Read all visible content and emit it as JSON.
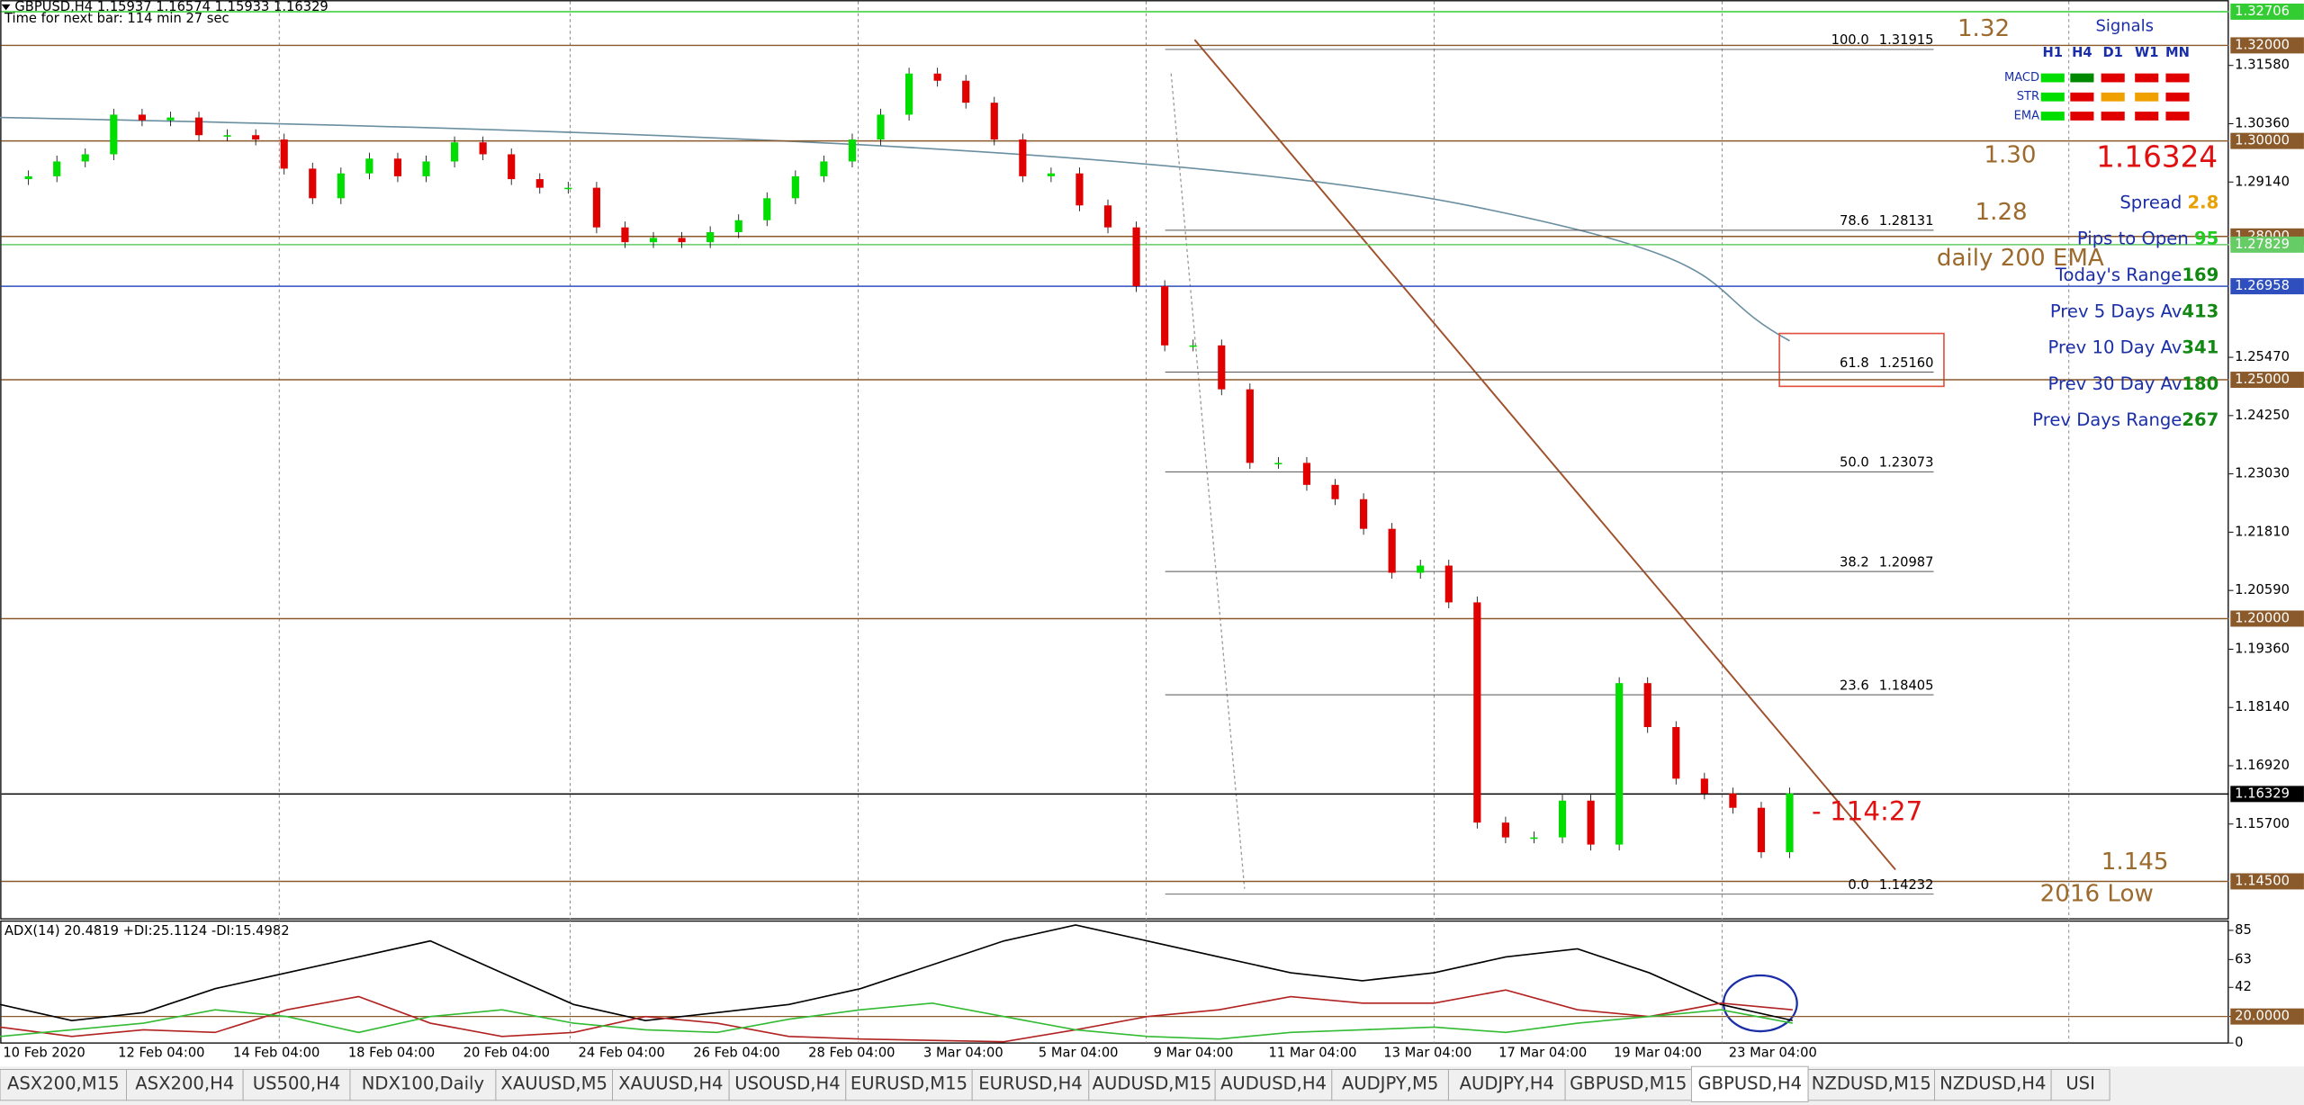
{
  "header": {
    "symbol_line": "GBPUSD,H4  1.15937 1.16574 1.15933 1.16329",
    "timer_line": "Time for next bar: 114 min 27 sec"
  },
  "price_chart": {
    "ylim": [
      1.1373,
      1.3295
    ],
    "yticks": [
      {
        "value": 1.3158,
        "label": "1.31580"
      },
      {
        "value": 1.3036,
        "label": "1.30360"
      },
      {
        "value": 1.2914,
        "label": "1.29140"
      },
      {
        "value": 1.2547,
        "label": "1.25470"
      },
      {
        "value": 1.2425,
        "label": "1.24250"
      },
      {
        "value": 1.2303,
        "label": "1.23030"
      },
      {
        "value": 1.2181,
        "label": "1.21810"
      },
      {
        "value": 1.2059,
        "label": "1.20590"
      },
      {
        "value": 1.1936,
        "label": "1.19360"
      },
      {
        "value": 1.1814,
        "label": "1.18140"
      },
      {
        "value": 1.1692,
        "label": "1.16920"
      },
      {
        "value": 1.157,
        "label": "1.15700"
      }
    ],
    "levels": [
      {
        "value": 1.32706,
        "label": "1.32706",
        "color": "#33cc33"
      },
      {
        "value": 1.32,
        "label": "1.32000",
        "color": "#8b5a2b"
      },
      {
        "value": 1.3,
        "label": "1.30000",
        "color": "#8b5a2b"
      },
      {
        "value": 1.28,
        "label": "1.28000",
        "color": "#8b5a2b"
      },
      {
        "value": 1.27829,
        "label": "1.27829",
        "color": "#66cc66"
      },
      {
        "value": 1.26958,
        "label": "1.26958",
        "color": "#2f4fbf"
      },
      {
        "value": 1.25,
        "label": "1.25000",
        "color": "#8b5a2b"
      },
      {
        "value": 1.2,
        "label": "1.20000",
        "color": "#8b5a2b"
      },
      {
        "value": 1.16329,
        "label": "1.16329",
        "color": "#000000"
      },
      {
        "value": 1.145,
        "label": "1.14500",
        "color": "#8b5a2b"
      }
    ],
    "fibonacci": [
      {
        "ratio": "100.0",
        "value": 1.31915,
        "label": "1.31915"
      },
      {
        "ratio": "78.6",
        "value": 1.28131,
        "label": "1.28131"
      },
      {
        "ratio": "61.8",
        "value": 1.2516,
        "label": "1.25160"
      },
      {
        "ratio": "50.0",
        "value": 1.23073,
        "label": "1.23073"
      },
      {
        "ratio": "38.2",
        "value": 1.20987,
        "label": "1.20987"
      },
      {
        "ratio": "23.6",
        "value": 1.18405,
        "label": "1.18405"
      },
      {
        "ratio": "0.0",
        "value": 1.14232,
        "label": "1.14232"
      }
    ],
    "closes": [
      1.292,
      1.2926,
      1.2957,
      1.2972,
      1.3055,
      1.3043,
      1.3049,
      1.3012,
      1.3012,
      1.3003,
      1.2942,
      1.288,
      1.2932,
      1.2963,
      1.2926,
      1.2957,
      1.2997,
      1.2972,
      1.292,
      1.2902,
      1.2902,
      1.2819,
      1.2788,
      1.2797,
      1.2788,
      1.2809,
      1.2834,
      1.288,
      1.2926,
      1.2957,
      1.3003,
      1.3055,
      1.3141,
      1.3126,
      1.308,
      1.3003,
      1.2926,
      1.2932,
      1.2865,
      1.2819,
      1.2696,
      1.2572,
      1.2572,
      1.248,
      1.2326,
      1.2326,
      1.228,
      1.225,
      1.2188,
      1.2096,
      1.2111,
      1.2034,
      1.1573,
      1.1542,
      1.1542,
      1.1619,
      1.1527,
      1.1865,
      1.1773,
      1.1665,
      1.1634,
      1.1604,
      1.1511,
      1.1634
    ],
    "up_color": "#00dd00",
    "down_color": "#e00000",
    "annotations": [
      "1.32",
      "1.30",
      "1.28",
      "daily 200 EMA",
      "1.145",
      "2016 Low"
    ],
    "countdown": "- 114:27"
  },
  "signals": {
    "title": "Signals",
    "columns": [
      "H1",
      "H4",
      "D1",
      "W1",
      "MN"
    ],
    "rows": [
      {
        "name": "MACD",
        "colors": [
          "#00dd00",
          "#008800",
          "#e00000",
          "#e00000",
          "#e00000"
        ]
      },
      {
        "name": "STR",
        "colors": [
          "#00dd00",
          "#e00000",
          "#f0a000",
          "#f0a000",
          "#e00000"
        ]
      },
      {
        "name": "EMA",
        "colors": [
          "#00dd00",
          "#e00000",
          "#e00000",
          "#e00000",
          "#e00000"
        ]
      }
    ],
    "bid": "1.16324",
    "stats": [
      {
        "label": "Spread ",
        "value": "2.8",
        "color": "#e8a000"
      },
      {
        "label": "Pips to Open  ",
        "value": "95",
        "color": "#22cc22"
      },
      {
        "label": "Today's Range",
        "value": "169",
        "color": "#118811"
      },
      {
        "label": "Prev 5 Days Av",
        "value": "413",
        "color": "#118811"
      },
      {
        "label": "Prev 10 Day Av",
        "value": "341",
        "color": "#118811"
      },
      {
        "label": "Prev 30 Day Av",
        "value": "180",
        "color": "#118811"
      },
      {
        "label": "Prev Days Range",
        "value": "267",
        "color": "#118811"
      }
    ]
  },
  "adx": {
    "title": "ADX(14) 20.4819 +DI:25.1124 -DI:15.4982",
    "ylim": [
      0,
      92
    ],
    "yticks": [
      85,
      63,
      42,
      {
        "value": 20,
        "label": "20.0000"
      },
      0
    ],
    "series": [
      {
        "color": "#000000",
        "values": [
          29,
          17,
          23,
          41,
          53,
          65,
          77,
          53,
          29,
          17,
          23,
          29,
          41,
          59,
          77,
          89,
          77,
          65,
          53,
          47,
          53,
          65,
          71,
          53,
          29,
          17
        ]
      },
      {
        "color": "#b22222",
        "values": [
          12,
          5,
          10,
          8,
          25,
          35,
          15,
          5,
          8,
          20,
          15,
          5,
          3,
          2,
          1,
          10,
          20,
          25,
          35,
          30,
          30,
          40,
          25,
          20,
          30,
          25
        ]
      },
      {
        "color": "#33bb33",
        "values": [
          5,
          10,
          15,
          25,
          20,
          8,
          20,
          25,
          15,
          10,
          8,
          18,
          25,
          30,
          20,
          10,
          5,
          3,
          8,
          10,
          12,
          8,
          15,
          20,
          25,
          15
        ]
      }
    ]
  },
  "x_axis": {
    "labels": [
      "10 Feb 2020",
      "12 Feb 04:00",
      "14 Feb 04:00",
      "18 Feb 04:00",
      "20 Feb 04:00",
      "24 Feb 04:00",
      "26 Feb 04:00",
      "28 Feb 04:00",
      "3 Mar 04:00",
      "5 Mar 04:00",
      "9 Mar 04:00",
      "11 Mar 04:00",
      "13 Mar 04:00",
      "17 Mar 04:00",
      "19 Mar 04:00",
      "23 Mar 04:00"
    ]
  },
  "tabs": [
    "ASX200,M15",
    "ASX200,H4",
    "US500,H4",
    "NDX100,Daily",
    "XAUUSD,M5",
    "XAUUSD,H4",
    "USOUSD,H4",
    "EURUSD,M15",
    "EURUSD,H4",
    "AUDUSD,M15",
    "AUDUSD,H4",
    "AUDJPY,M5",
    "AUDJPY,H4",
    "GBPUSD,M15",
    "GBPUSD,H4",
    "NZDUSD,M15",
    "NZDUSD,H4",
    "USI"
  ],
  "active_tab": 14
}
